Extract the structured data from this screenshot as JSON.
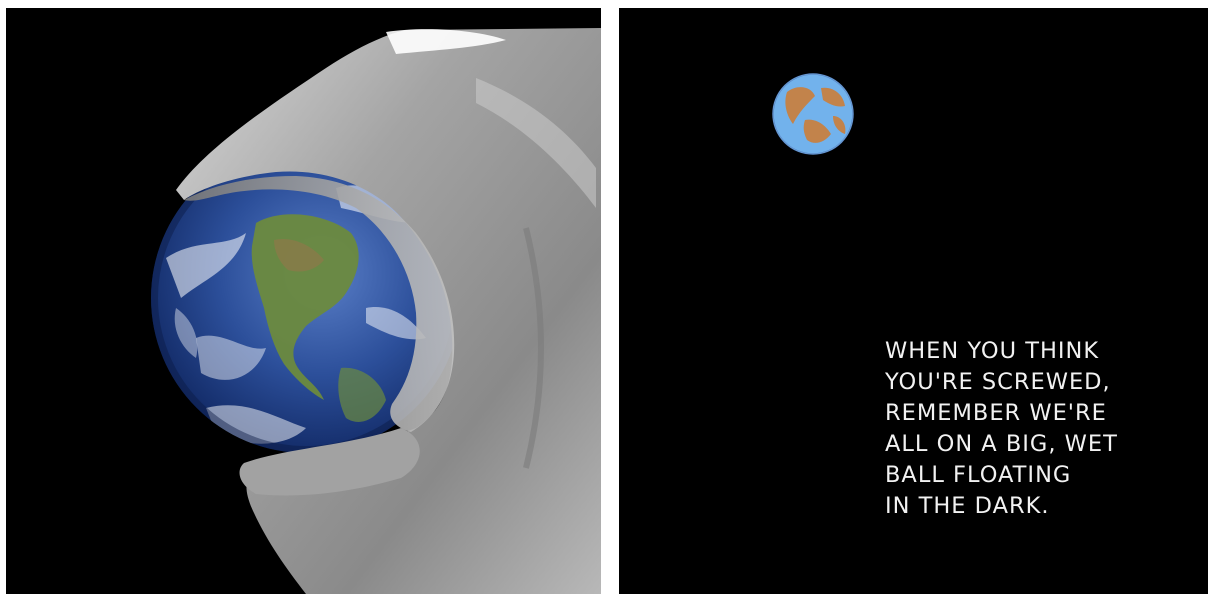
{
  "left_panel": {
    "background": "#000000",
    "subject": "wrench-gripping-earth"
  },
  "right_panel": {
    "background": "#000000",
    "caption_color": "#f2f2f2",
    "caption": {
      "lines": [
        "WHEN YOU THINK",
        "YOU'RE SCREWED,",
        "REMEMBER WE'RE",
        "ALL ON A BIG, WET",
        "BALL FLOATING",
        "IN THE DARK."
      ]
    }
  },
  "colors": {
    "ocean": "#2a4f9e",
    "land": "#6a8a3a",
    "metal": "#9a9a9a",
    "doodle_ocean": "#6aaee8",
    "doodle_land": "#c0824a"
  }
}
